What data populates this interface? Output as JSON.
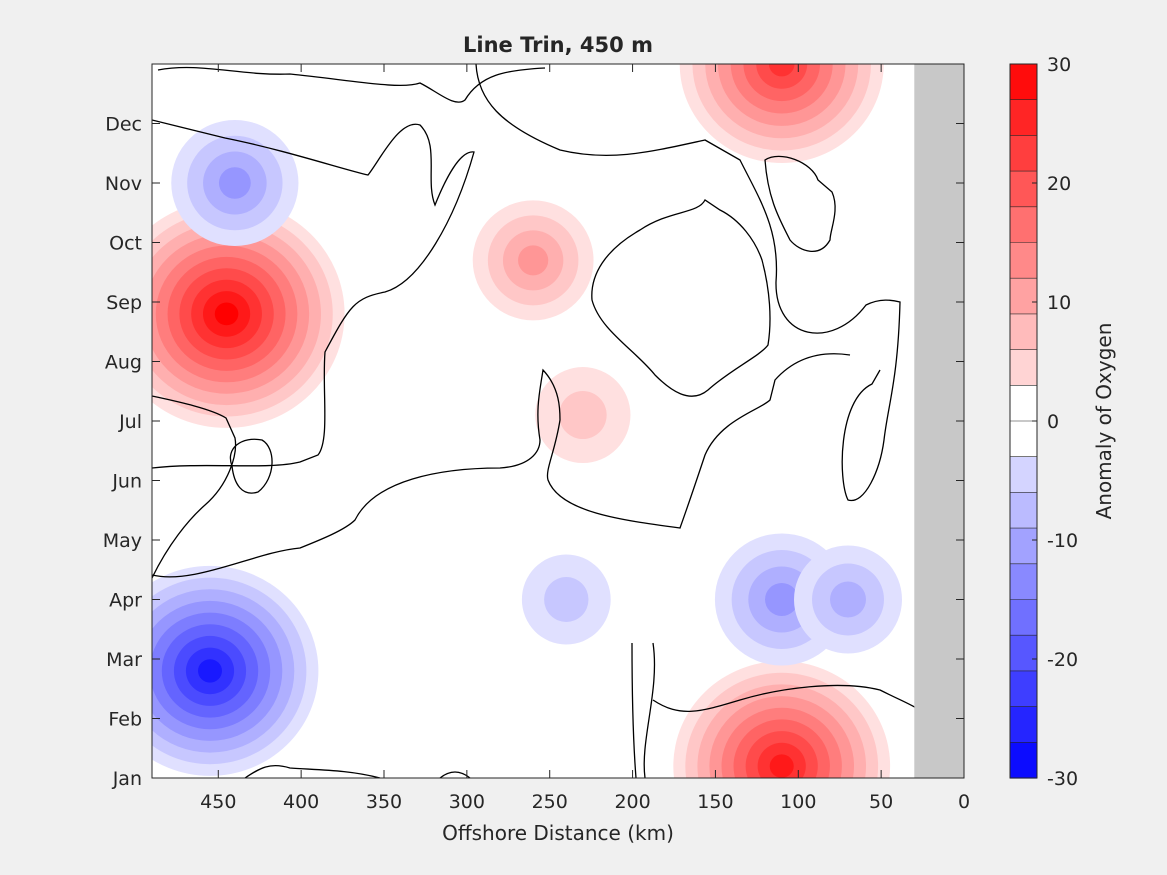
{
  "chart_data": {
    "type": "heatmap",
    "title": "Line Trin, 450 m",
    "xlabel": "Offshore Distance (km)",
    "ylabel": "",
    "colorbar_label": "Anomaly of Oxygen",
    "x_reversed": true,
    "xlim": [
      0,
      490
    ],
    "x_ticks": [
      450,
      400,
      350,
      300,
      250,
      200,
      150,
      100,
      50,
      0
    ],
    "y_ticks": [
      "Jan",
      "Feb",
      "Mar",
      "Apr",
      "May",
      "Jun",
      "Jul",
      "Aug",
      "Sep",
      "Oct",
      "Nov",
      "Dec"
    ],
    "clim": [
      -30,
      30
    ],
    "colorbar_ticks": [
      30,
      20,
      10,
      0,
      -10,
      -20,
      -30
    ],
    "contour_step": 3,
    "no_data_range_km": [
      0,
      30
    ],
    "no_data_color": "#c8c8c8",
    "zero_contour": "black",
    "colormap": {
      "negative": "#0000ff",
      "zero": "#ffffff",
      "positive": "#ff0000"
    },
    "features": [
      {
        "name": "positive anomaly",
        "x_km": 445,
        "month": 7.8,
        "value": 30
      },
      {
        "name": "negative anomaly",
        "x_km": 455,
        "month": 1.8,
        "value": -27
      },
      {
        "name": "negative anomaly",
        "x_km": 440,
        "month": 10.0,
        "value": -13
      },
      {
        "name": "positive anomaly",
        "x_km": 260,
        "month": 8.7,
        "value": 12
      },
      {
        "name": "positive anomaly",
        "x_km": 230,
        "month": 6.1,
        "value": 8
      },
      {
        "name": "positive anomaly",
        "x_km": 110,
        "month": 0.2,
        "value": 27
      },
      {
        "name": "positive anomaly",
        "x_km": 110,
        "month": 12.0,
        "value": 25
      },
      {
        "name": "negative anomaly",
        "x_km": 110,
        "month": 3.0,
        "value": -14
      },
      {
        "name": "negative anomaly",
        "x_km": 70,
        "month": 3.0,
        "value": -10
      },
      {
        "name": "negative anomaly",
        "x_km": 240,
        "month": 3.0,
        "value": -7
      }
    ]
  }
}
